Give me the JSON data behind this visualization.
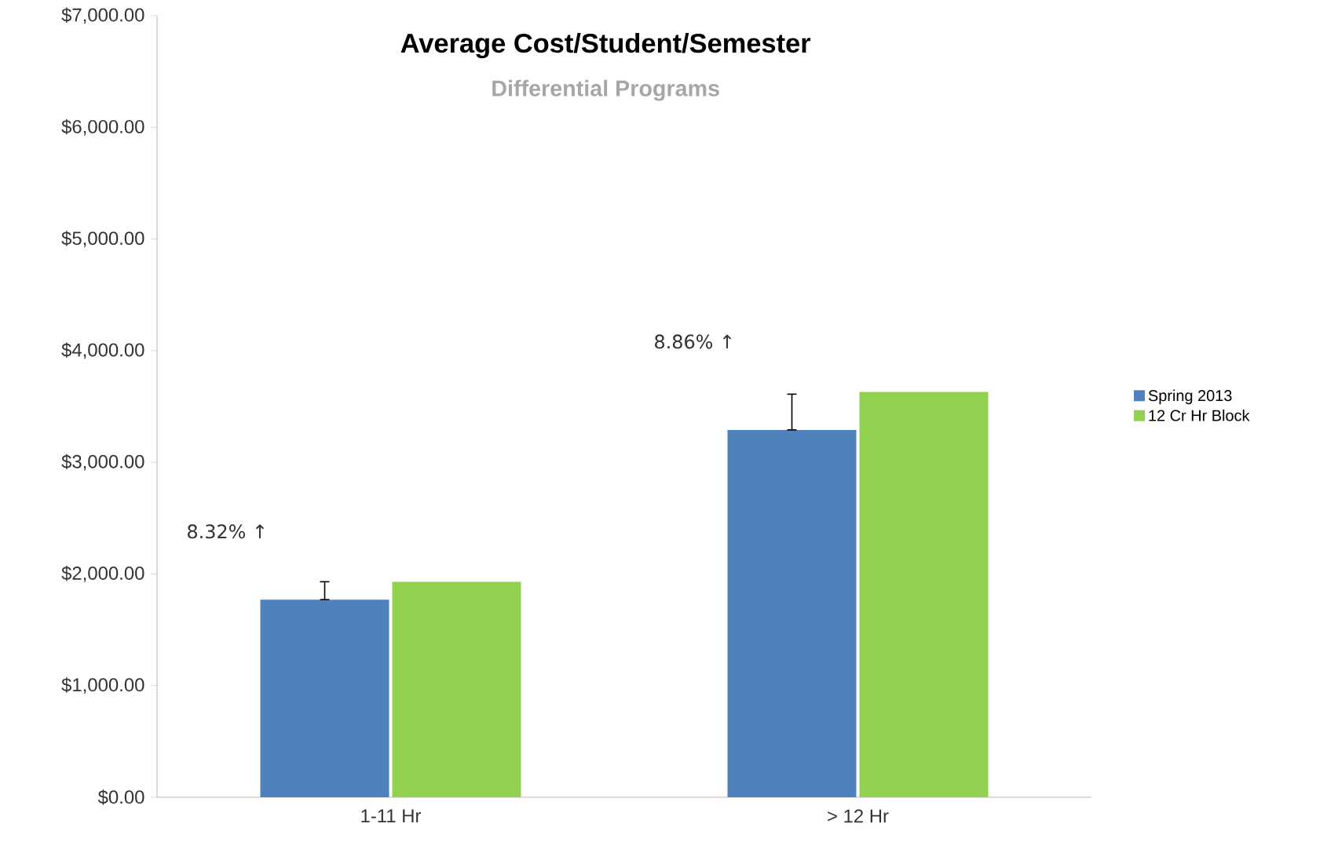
{
  "chart_data": {
    "type": "bar",
    "title": "Average Cost/Student/Semester",
    "subtitle": "Differential Programs",
    "categories": [
      "1-11 Hr",
      "> 12 Hr"
    ],
    "series": [
      {
        "name": "Spring 2013",
        "color": "#4f81bd",
        "values": [
          1770,
          3290
        ],
        "errors": [
          [
            1770,
            1930
          ],
          [
            3290,
            3610
          ]
        ]
      },
      {
        "name": "12 Cr Hr Block",
        "color": "#92d050",
        "values": [
          1930,
          3630
        ]
      }
    ],
    "ylim": [
      0,
      7000
    ],
    "yticks": [
      {
        "value": 0,
        "label": "$0.00"
      },
      {
        "value": 1000,
        "label": "$1,000.00"
      },
      {
        "value": 2000,
        "label": "$2,000.00"
      },
      {
        "value": 3000,
        "label": "$3,000.00"
      },
      {
        "value": 4000,
        "label": "$4,000.00"
      },
      {
        "value": 5000,
        "label": "$5,000.00"
      },
      {
        "value": 6000,
        "label": "$6,000.00"
      },
      {
        "value": 7000,
        "label": "$7,000.00"
      }
    ],
    "annotations": [
      "8.32% ↑",
      "8.86% ↑"
    ],
    "grid": false,
    "legend": "right"
  }
}
